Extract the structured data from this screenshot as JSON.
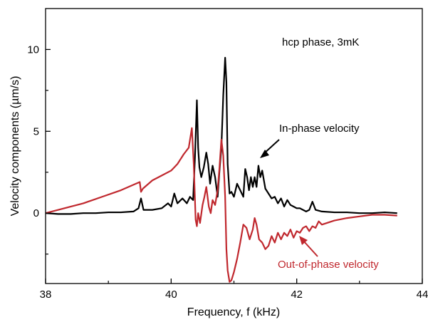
{
  "chart_data": {
    "type": "line",
    "title": "",
    "xlabel": "Frequency, f (kHz)",
    "ylabel": "Velocity components (µm/s)",
    "xlim": [
      38,
      44
    ],
    "ylim": [
      -4.3,
      12.5
    ],
    "xticks": [
      38,
      40,
      42,
      44
    ],
    "yticks": [
      0,
      5,
      10
    ],
    "grid": false,
    "legend": "none",
    "annotations": {
      "condition": "hcp phase, 3mK",
      "in_phase_label": "In-phase velocity",
      "out_phase_label": "Out-of-phase velocity"
    },
    "series": [
      {
        "color": "#000000",
        "x": [
          38.0,
          38.2,
          38.4,
          38.6,
          38.8,
          39.0,
          39.2,
          39.4,
          39.48,
          39.52,
          39.56,
          39.7,
          39.85,
          39.95,
          40.0,
          40.05,
          40.1,
          40.18,
          40.25,
          40.3,
          40.35,
          40.38,
          40.41,
          40.43,
          40.45,
          40.48,
          40.52,
          40.56,
          40.59,
          40.62,
          40.66,
          40.7,
          40.74,
          40.77,
          40.8,
          40.83,
          40.86,
          40.88,
          40.9,
          40.93,
          40.96,
          41.0,
          41.05,
          41.1,
          41.15,
          41.18,
          41.21,
          41.24,
          41.27,
          41.3,
          41.33,
          41.36,
          41.39,
          41.42,
          41.45,
          41.5,
          41.55,
          41.6,
          41.65,
          41.7,
          41.75,
          41.8,
          41.85,
          41.9,
          41.95,
          42.0,
          42.05,
          42.1,
          42.15,
          42.2,
          42.25,
          42.3,
          42.4,
          42.6,
          42.8,
          43.0,
          43.2,
          43.4,
          43.6
        ],
        "y": [
          0.0,
          -0.05,
          -0.05,
          0.0,
          0.0,
          0.05,
          0.05,
          0.1,
          0.3,
          0.9,
          0.2,
          0.2,
          0.3,
          0.6,
          0.4,
          1.2,
          0.6,
          0.9,
          0.6,
          1.0,
          0.8,
          3.5,
          6.9,
          4.0,
          2.8,
          2.2,
          2.8,
          3.7,
          3.0,
          1.8,
          2.9,
          2.2,
          1.0,
          2.6,
          4.0,
          7.2,
          9.5,
          8.0,
          3.0,
          1.2,
          1.3,
          1.0,
          1.8,
          1.4,
          1.0,
          2.7,
          2.2,
          1.4,
          2.2,
          1.6,
          2.2,
          1.6,
          2.9,
          2.2,
          2.6,
          1.5,
          1.2,
          0.9,
          1.0,
          0.6,
          0.9,
          0.4,
          0.8,
          0.5,
          0.4,
          0.3,
          0.3,
          0.2,
          0.1,
          0.2,
          0.7,
          0.2,
          0.1,
          0.05,
          0.05,
          0.0,
          0.0,
          0.05,
          0.0
        ]
      },
      {
        "color": "#c0282e",
        "x": [
          38.0,
          38.3,
          38.6,
          38.9,
          39.2,
          39.5,
          39.52,
          39.55,
          39.7,
          39.85,
          40.0,
          40.1,
          40.2,
          40.28,
          40.33,
          40.36,
          40.39,
          40.41,
          40.43,
          40.46,
          40.5,
          40.53,
          40.56,
          40.6,
          40.63,
          40.66,
          40.7,
          40.74,
          40.77,
          40.8,
          40.83,
          40.86,
          40.88,
          40.9,
          40.93,
          40.96,
          41.0,
          41.05,
          41.1,
          41.15,
          41.2,
          41.25,
          41.3,
          41.33,
          41.36,
          41.4,
          41.45,
          41.5,
          41.55,
          41.6,
          41.65,
          41.7,
          41.75,
          41.8,
          41.85,
          41.9,
          41.95,
          42.0,
          42.05,
          42.1,
          42.15,
          42.2,
          42.25,
          42.3,
          42.35,
          42.4,
          42.6,
          42.8,
          43.0,
          43.2,
          43.4,
          43.6
        ],
        "y": [
          0.0,
          0.3,
          0.6,
          1.0,
          1.4,
          1.9,
          1.3,
          1.5,
          2.0,
          2.3,
          2.6,
          3.0,
          3.6,
          4.0,
          5.2,
          3.0,
          -0.4,
          -0.8,
          0.0,
          -0.6,
          0.5,
          1.0,
          1.6,
          0.4,
          0.0,
          0.8,
          0.5,
          1.4,
          2.8,
          4.5,
          3.5,
          1.0,
          -2.2,
          -3.5,
          -4.2,
          -4.1,
          -3.6,
          -2.8,
          -1.8,
          -0.7,
          -0.9,
          -1.6,
          -1.0,
          -0.3,
          -0.7,
          -1.6,
          -1.8,
          -2.2,
          -2.0,
          -1.4,
          -1.8,
          -1.2,
          -1.6,
          -1.2,
          -1.4,
          -1.0,
          -1.5,
          -1.1,
          -1.2,
          -0.9,
          -0.8,
          -1.1,
          -0.8,
          -0.9,
          -0.5,
          -0.7,
          -0.45,
          -0.3,
          -0.2,
          -0.1,
          -0.1,
          -0.15
        ]
      }
    ]
  }
}
